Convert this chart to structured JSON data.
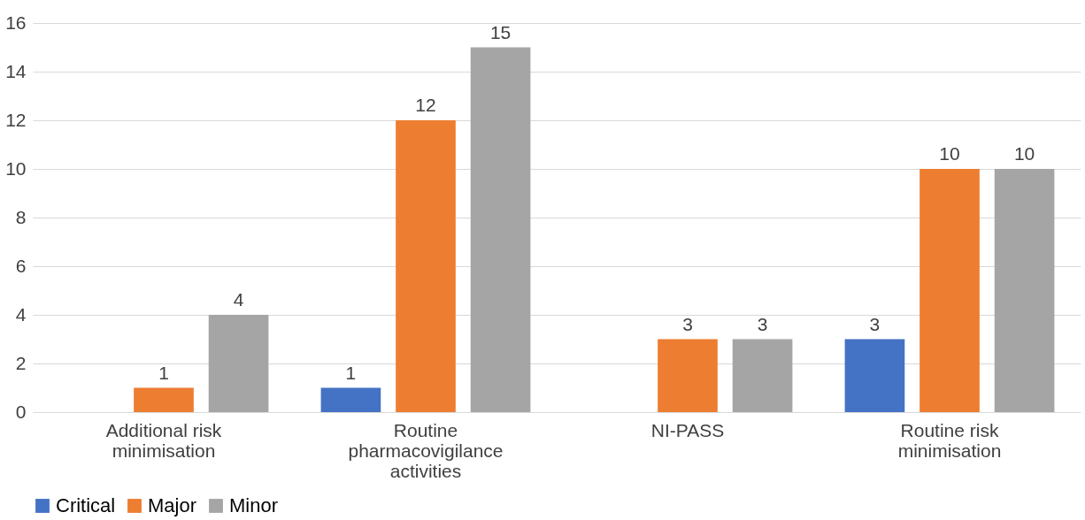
{
  "chart_data": {
    "type": "bar",
    "categories": [
      "Additional risk minimisation",
      "Routine pharmacovigilance activities",
      "NI-PASS",
      "Routine risk minimisation"
    ],
    "series": [
      {
        "name": "Critical",
        "color": "#4472c4",
        "values": [
          null,
          1,
          null,
          3
        ]
      },
      {
        "name": "Major",
        "color": "#ed7d31",
        "values": [
          1,
          12,
          3,
          10
        ]
      },
      {
        "name": "Minor",
        "color": "#a5a5a5",
        "values": [
          4,
          15,
          3,
          10
        ]
      }
    ],
    "ylim": [
      0,
      16
    ],
    "yticks": [
      0,
      2,
      4,
      6,
      8,
      10,
      12,
      14,
      16
    ],
    "grid": "y",
    "legend": "bottom",
    "data_labels": true
  }
}
